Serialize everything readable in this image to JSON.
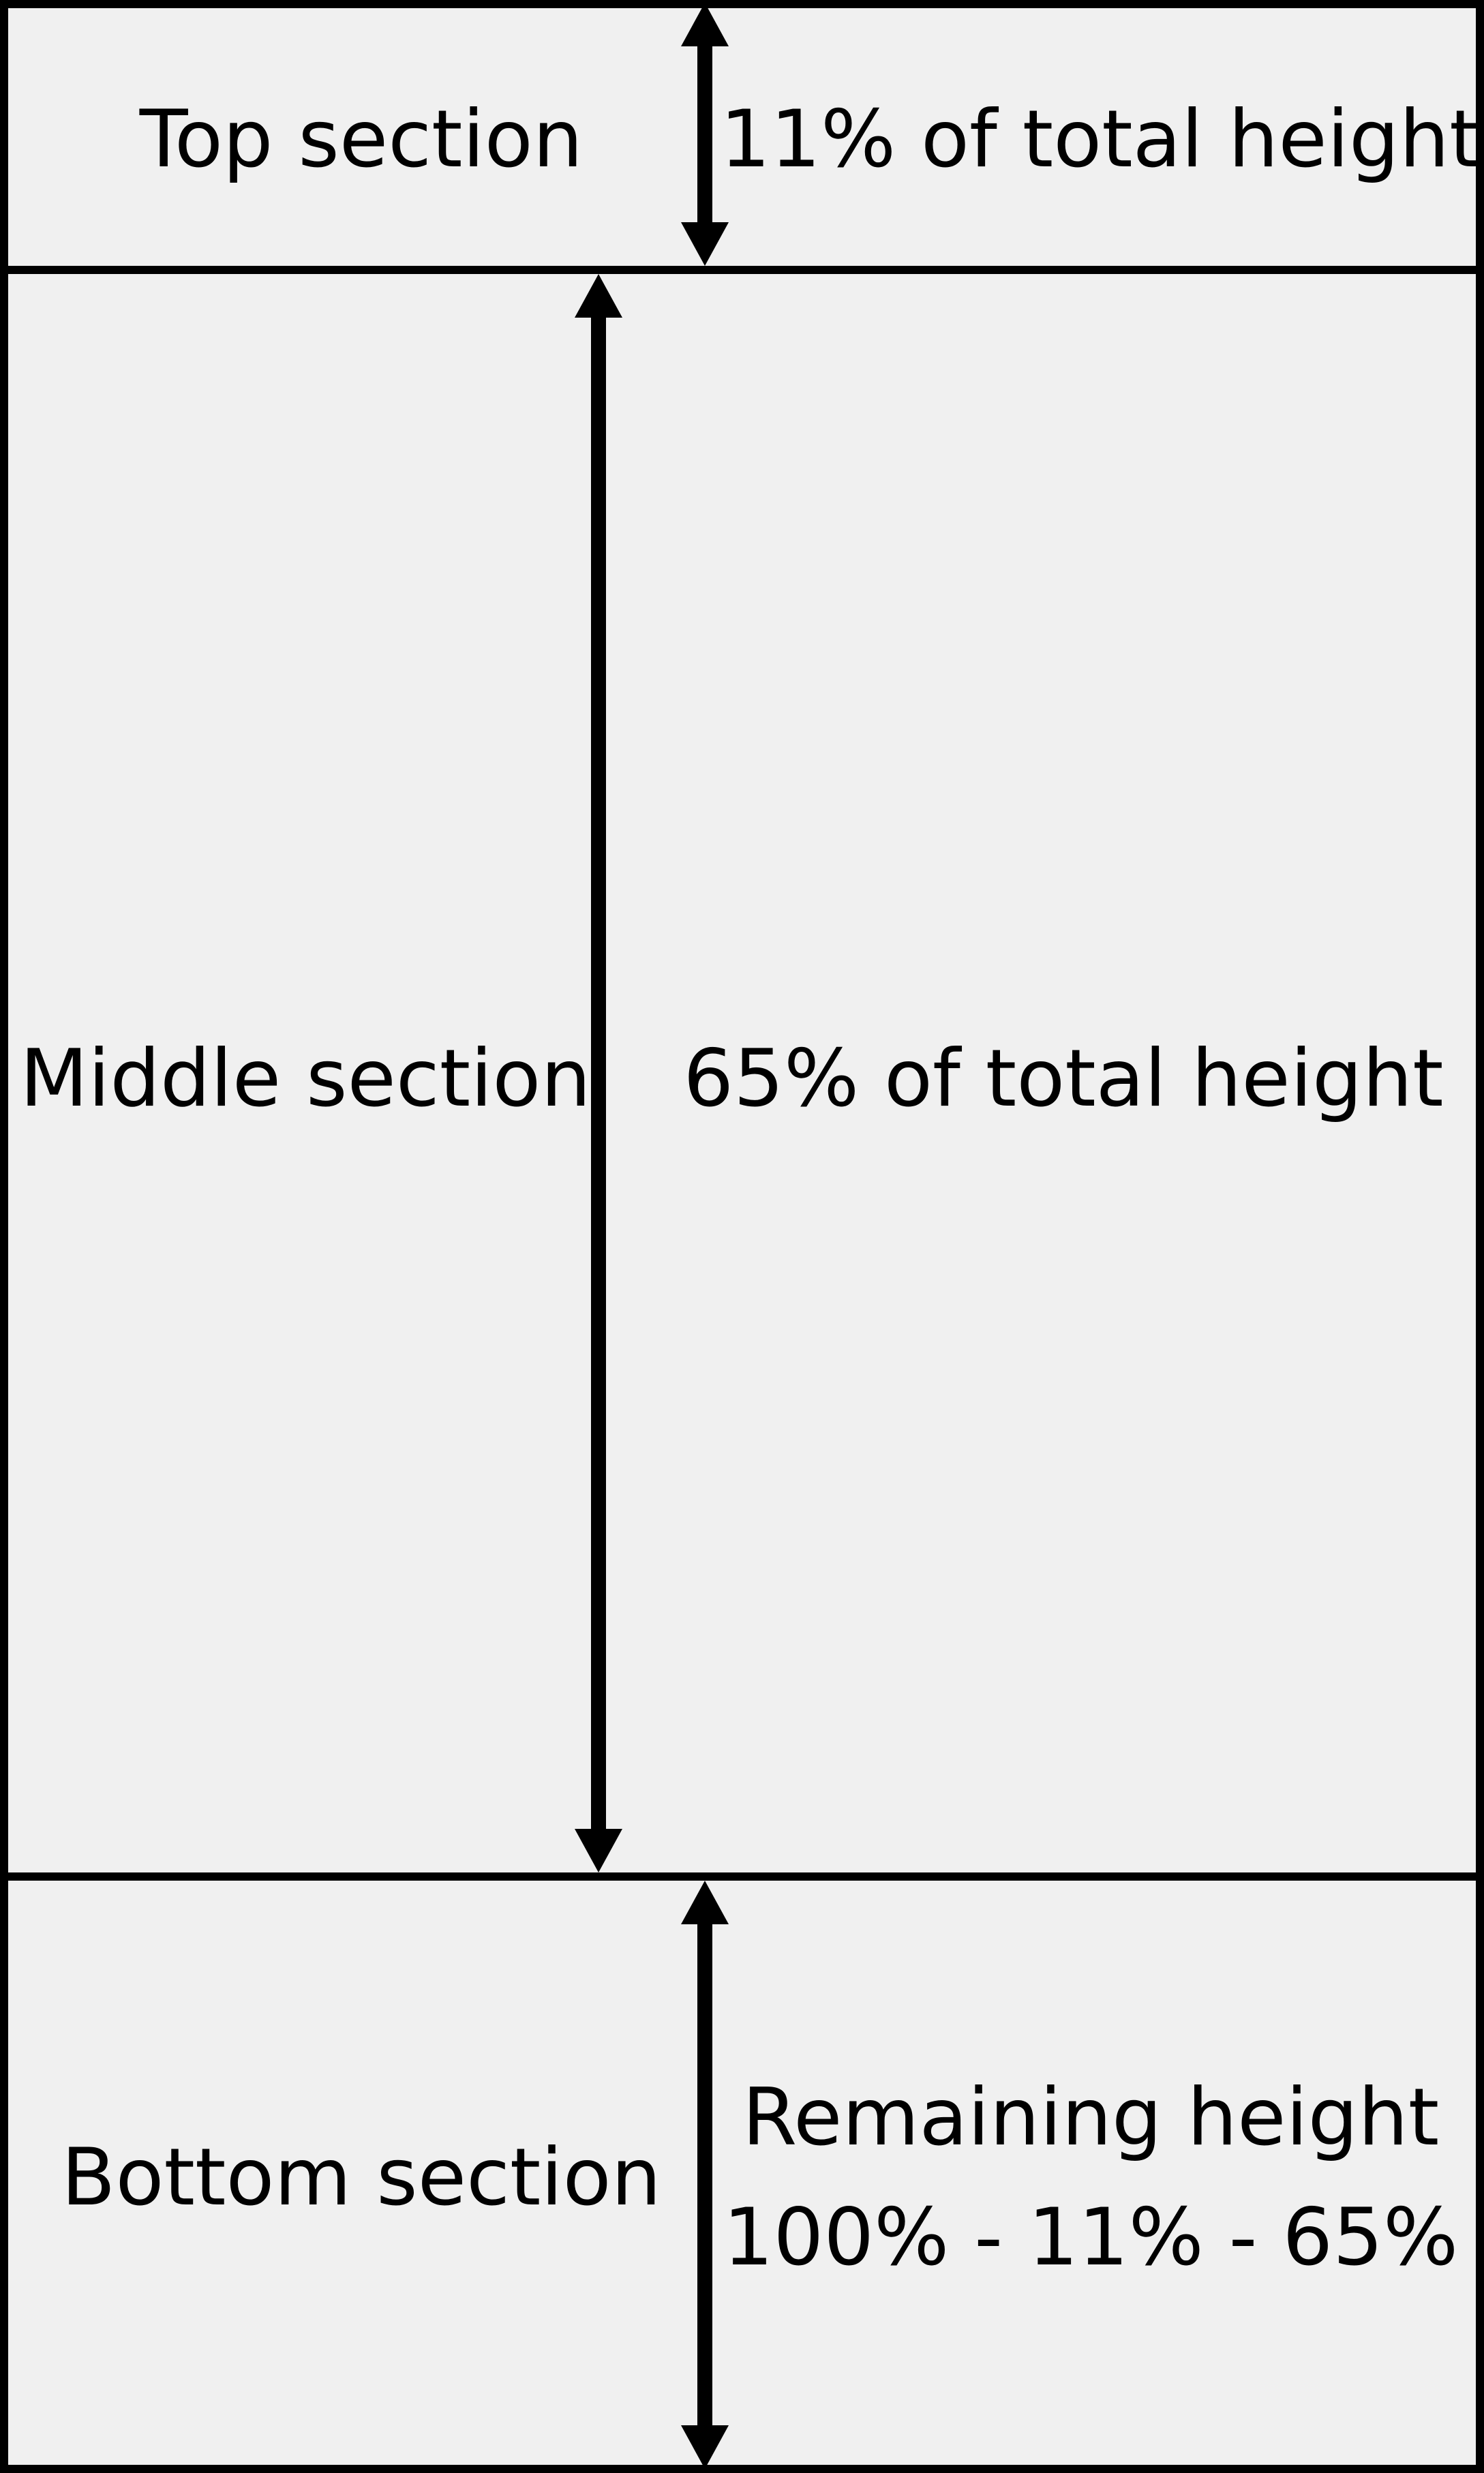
{
  "diagram": {
    "background_color": "#f0f0f0",
    "line_color": "#000000",
    "sections": [
      {
        "id": "top",
        "name": "Top section",
        "description_lines": [
          "11% of total height"
        ]
      },
      {
        "id": "middle",
        "name": "Middle section",
        "description_lines": [
          "65% of total height"
        ]
      },
      {
        "id": "bottom",
        "name": "Bottom section",
        "description_lines": [
          "Remaining height",
          "100% - 11% - 65%"
        ]
      }
    ]
  }
}
